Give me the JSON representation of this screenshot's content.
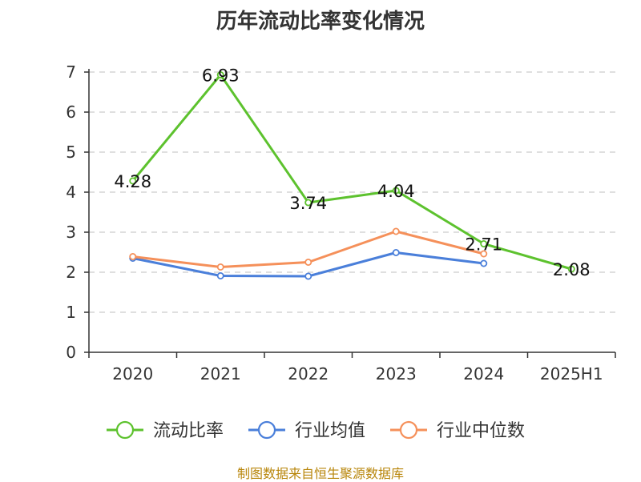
{
  "title": "历年流动比率变化情况",
  "source": "制图数据来自恒生聚源数据库",
  "chart_data": {
    "type": "line",
    "title": "历年流动比率变化情况",
    "categories": [
      "2020",
      "2021",
      "2022",
      "2023",
      "2024",
      "2025H1"
    ],
    "ylim": [
      0,
      7
    ],
    "yticks": [
      "0",
      "1",
      "2",
      "3",
      "4",
      "5",
      "6",
      "7"
    ],
    "grid": true,
    "legend_position": "bottom",
    "series": [
      {
        "name": "流动比率",
        "color": "#5dc22e",
        "values": [
          4.28,
          6.93,
          3.74,
          4.04,
          2.71,
          2.08
        ],
        "labels": [
          "4.28",
          "6.93",
          "3.74",
          "4.04",
          "2.71",
          "2.08"
        ]
      },
      {
        "name": "行业均值",
        "color": "#4a7fda",
        "values": [
          2.35,
          1.91,
          1.9,
          2.49,
          2.22,
          null
        ]
      },
      {
        "name": "行业中位数",
        "color": "#f5905a",
        "values": [
          2.39,
          2.13,
          2.25,
          3.02,
          2.46,
          null
        ]
      }
    ]
  }
}
